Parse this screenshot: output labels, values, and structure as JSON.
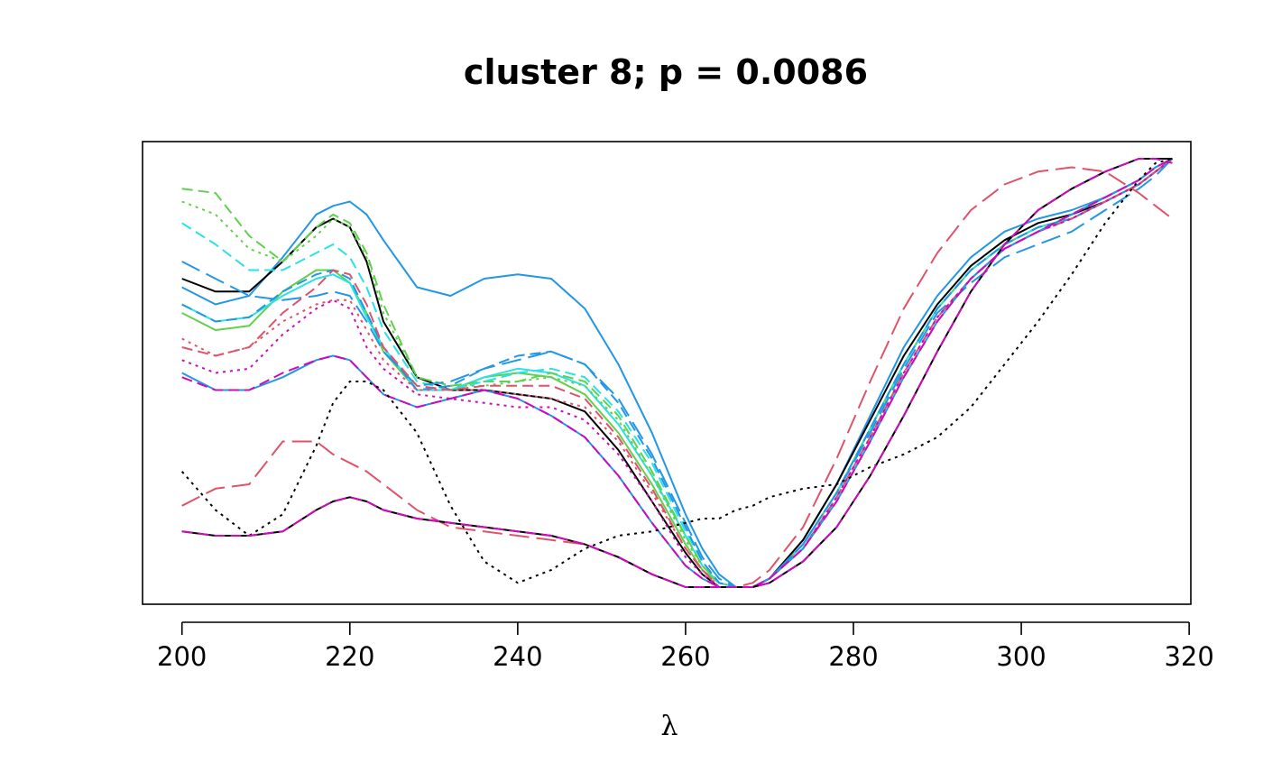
{
  "chart_data": {
    "type": "line",
    "title": "cluster 8; p = 0.0086",
    "xlabel": "λ",
    "ylabel": "",
    "xlim": [
      195.3,
      320.2
    ],
    "ylim": [
      -0.04,
      1.04
    ],
    "x_ticks": [
      200,
      220,
      240,
      260,
      280,
      300,
      320
    ],
    "x_tick_labels": [
      "200",
      "220",
      "240",
      "260",
      "280",
      "300",
      "320"
    ],
    "y_axis_shown": false,
    "grid": false,
    "legend": "none",
    "x": [
      200,
      204,
      208,
      212,
      216,
      218,
      220,
      222,
      224,
      228,
      232,
      236,
      240,
      244,
      248,
      252,
      256,
      260,
      262,
      264,
      266,
      268,
      270,
      274,
      278,
      282,
      286,
      290,
      294,
      298,
      302,
      306,
      310,
      314,
      316,
      318
    ],
    "series": [
      {
        "color": "#2297E6",
        "dash": "solid",
        "values": [
          0.7,
          0.66,
          0.68,
          0.77,
          0.87,
          0.89,
          0.9,
          0.87,
          0.81,
          0.7,
          0.68,
          0.72,
          0.73,
          0.72,
          0.65,
          0.52,
          0.36,
          0.17,
          0.09,
          0.03,
          0.0,
          0.0,
          0.02,
          0.11,
          0.24,
          0.4,
          0.56,
          0.68,
          0.77,
          0.83,
          0.86,
          0.88,
          0.91,
          0.95,
          0.98,
          1.0
        ]
      },
      {
        "color": "#000000",
        "dash": "solid",
        "values": [
          0.72,
          0.69,
          0.69,
          0.76,
          0.84,
          0.86,
          0.84,
          0.76,
          0.62,
          0.49,
          0.46,
          0.46,
          0.45,
          0.44,
          0.41,
          0.32,
          0.2,
          0.08,
          0.03,
          0.0,
          0.0,
          0.0,
          0.02,
          0.11,
          0.24,
          0.39,
          0.54,
          0.66,
          0.75,
          0.81,
          0.85,
          0.87,
          0.9,
          0.94,
          0.97,
          1.0
        ]
      },
      {
        "color": "#61D04F",
        "dash": "solid",
        "values": [
          0.64,
          0.6,
          0.61,
          0.69,
          0.74,
          0.74,
          0.71,
          0.64,
          0.55,
          0.46,
          0.46,
          0.49,
          0.5,
          0.49,
          0.45,
          0.36,
          0.24,
          0.1,
          0.04,
          0.01,
          0.0,
          0.0,
          0.02,
          0.1,
          0.22,
          0.37,
          0.52,
          0.65,
          0.74,
          0.8,
          0.84,
          0.86,
          0.9,
          0.94,
          0.97,
          1.0
        ]
      },
      {
        "color": "#28E2E5",
        "dash": "solid",
        "values": [
          0.66,
          0.62,
          0.63,
          0.68,
          0.72,
          0.73,
          0.71,
          0.63,
          0.56,
          0.46,
          0.46,
          0.49,
          0.51,
          0.5,
          0.47,
          0.38,
          0.26,
          0.12,
          0.05,
          0.01,
          0.0,
          0.0,
          0.02,
          0.1,
          0.22,
          0.37,
          0.52,
          0.65,
          0.74,
          0.8,
          0.84,
          0.86,
          0.9,
          0.94,
          0.97,
          1.0
        ]
      },
      {
        "color": "#61D04F",
        "dash": "dashed",
        "values": [
          0.93,
          0.92,
          0.82,
          0.76,
          0.84,
          0.87,
          0.85,
          0.78,
          0.66,
          0.49,
          0.47,
          0.48,
          0.48,
          0.5,
          0.48,
          0.4,
          0.27,
          0.12,
          0.05,
          0.01,
          0.0,
          0.0,
          0.02,
          0.1,
          0.22,
          0.37,
          0.52,
          0.65,
          0.74,
          0.8,
          0.84,
          0.86,
          0.9,
          0.94,
          0.97,
          1.0
        ]
      },
      {
        "color": "#61D04F",
        "dash": "dotted",
        "values": [
          0.9,
          0.87,
          0.79,
          0.76,
          0.82,
          0.86,
          0.84,
          0.77,
          0.64,
          0.49,
          0.47,
          0.47,
          0.48,
          0.49,
          0.47,
          0.39,
          0.26,
          0.11,
          0.05,
          0.01,
          0.0,
          0.0,
          0.02,
          0.1,
          0.22,
          0.37,
          0.52,
          0.65,
          0.74,
          0.8,
          0.84,
          0.86,
          0.9,
          0.94,
          0.97,
          1.0
        ]
      },
      {
        "color": "#28E2E5",
        "dash": "dashed",
        "values": [
          0.85,
          0.8,
          0.74,
          0.74,
          0.78,
          0.8,
          0.77,
          0.7,
          0.6,
          0.48,
          0.46,
          0.48,
          0.5,
          0.51,
          0.49,
          0.41,
          0.29,
          0.13,
          0.06,
          0.01,
          0.0,
          0.0,
          0.02,
          0.1,
          0.22,
          0.37,
          0.52,
          0.65,
          0.74,
          0.8,
          0.84,
          0.86,
          0.9,
          0.94,
          0.97,
          1.0
        ]
      },
      {
        "color": "#2297E6",
        "dash": "longdash",
        "values": [
          0.76,
          0.72,
          0.68,
          0.67,
          0.68,
          0.69,
          0.68,
          0.62,
          0.55,
          0.47,
          0.48,
          0.51,
          0.53,
          0.55,
          0.52,
          0.44,
          0.31,
          0.15,
          0.07,
          0.02,
          0.0,
          0.0,
          0.02,
          0.1,
          0.22,
          0.36,
          0.51,
          0.64,
          0.71,
          0.77,
          0.8,
          0.83,
          0.88,
          0.93,
          0.96,
          1.0
        ]
      },
      {
        "color": "#2297E6",
        "dash": "dashed",
        "values": [
          0.66,
          0.62,
          0.63,
          0.69,
          0.73,
          0.74,
          0.72,
          0.64,
          0.56,
          0.46,
          0.47,
          0.51,
          0.54,
          0.55,
          0.52,
          0.43,
          0.3,
          0.14,
          0.06,
          0.01,
          0.0,
          0.0,
          0.02,
          0.1,
          0.22,
          0.37,
          0.52,
          0.65,
          0.74,
          0.8,
          0.84,
          0.86,
          0.9,
          0.94,
          0.97,
          1.0
        ]
      },
      {
        "color": "#DF536B",
        "dash": "dashed",
        "values": [
          0.56,
          0.54,
          0.56,
          0.64,
          0.7,
          0.74,
          0.73,
          0.66,
          0.56,
          0.47,
          0.46,
          0.47,
          0.47,
          0.47,
          0.44,
          0.35,
          0.23,
          0.09,
          0.04,
          0.0,
          0.0,
          0.0,
          0.02,
          0.09,
          0.21,
          0.35,
          0.5,
          0.63,
          0.72,
          0.79,
          0.83,
          0.86,
          0.9,
          0.94,
          0.97,
          1.0
        ]
      },
      {
        "color": "#DF536B",
        "dash": "dotted",
        "values": [
          0.58,
          0.54,
          0.56,
          0.62,
          0.66,
          0.67,
          0.67,
          0.6,
          0.53,
          0.46,
          0.46,
          0.46,
          0.45,
          0.44,
          0.42,
          0.34,
          0.22,
          0.09,
          0.04,
          0.0,
          0.0,
          0.0,
          0.02,
          0.09,
          0.21,
          0.35,
          0.5,
          0.63,
          0.72,
          0.79,
          0.83,
          0.86,
          0.9,
          0.94,
          0.97,
          1.0
        ]
      },
      {
        "color": "#CD0BBC",
        "dash": "dotted",
        "values": [
          0.53,
          0.5,
          0.51,
          0.59,
          0.65,
          0.67,
          0.65,
          0.56,
          0.51,
          0.45,
          0.44,
          0.43,
          0.42,
          0.42,
          0.39,
          0.31,
          0.2,
          0.07,
          0.03,
          0.0,
          0.0,
          0.0,
          0.02,
          0.09,
          0.21,
          0.35,
          0.5,
          0.63,
          0.72,
          0.79,
          0.83,
          0.86,
          0.9,
          0.94,
          0.97,
          1.0
        ]
      },
      {
        "color": "#2297E6",
        "dash": "solid",
        "values": [
          0.5,
          0.46,
          0.46,
          0.49,
          0.53,
          0.54,
          0.53,
          0.49,
          0.45,
          0.42,
          0.44,
          0.46,
          0.44,
          0.4,
          0.35,
          0.26,
          0.15,
          0.05,
          0.02,
          0.0,
          0.0,
          0.0,
          0.02,
          0.09,
          0.2,
          0.34,
          0.49,
          0.62,
          0.72,
          0.79,
          0.83,
          0.87,
          0.91,
          0.95,
          0.98,
          1.0
        ]
      },
      {
        "color": "#CD0BBC",
        "dash": "dashed",
        "values": [
          0.49,
          0.46,
          0.46,
          0.5,
          0.53,
          0.54,
          0.53,
          0.49,
          0.45,
          0.42,
          0.44,
          0.46,
          0.44,
          0.4,
          0.35,
          0.26,
          0.15,
          0.05,
          0.02,
          0.0,
          0.0,
          0.0,
          0.02,
          0.09,
          0.2,
          0.34,
          0.49,
          0.62,
          0.72,
          0.79,
          0.83,
          0.87,
          0.91,
          0.95,
          0.98,
          1.0
        ]
      },
      {
        "color": "#DF536B",
        "dash": "longdash",
        "values": [
          0.19,
          0.23,
          0.24,
          0.34,
          0.34,
          0.31,
          0.29,
          0.27,
          0.24,
          0.18,
          0.14,
          0.13,
          0.12,
          0.11,
          0.1,
          0.07,
          0.03,
          0.0,
          0.0,
          0.0,
          0.0,
          0.01,
          0.04,
          0.14,
          0.3,
          0.48,
          0.65,
          0.78,
          0.88,
          0.94,
          0.97,
          0.98,
          0.97,
          0.92,
          0.89,
          0.86
        ]
      },
      {
        "color": "#000000",
        "dash": "dotted",
        "values": [
          0.27,
          0.18,
          0.12,
          0.17,
          0.33,
          0.43,
          0.48,
          0.48,
          0.46,
          0.36,
          0.19,
          0.06,
          0.01,
          0.04,
          0.09,
          0.12,
          0.13,
          0.15,
          0.16,
          0.16,
          0.18,
          0.19,
          0.21,
          0.23,
          0.24,
          0.28,
          0.31,
          0.35,
          0.42,
          0.52,
          0.62,
          0.73,
          0.85,
          0.95,
          0.99,
          1.0
        ]
      },
      {
        "color": "#000000",
        "dash": "solid",
        "values": [
          0.13,
          0.12,
          0.12,
          0.13,
          0.18,
          0.2,
          0.21,
          0.2,
          0.18,
          0.16,
          0.15,
          0.14,
          0.13,
          0.12,
          0.1,
          0.07,
          0.03,
          0.0,
          0.0,
          0.0,
          0.0,
          0.0,
          0.01,
          0.06,
          0.14,
          0.26,
          0.4,
          0.55,
          0.69,
          0.8,
          0.88,
          0.93,
          0.97,
          1.0,
          1.0,
          1.0
        ]
      },
      {
        "color": "#CD0BBC",
        "dash": "dashed",
        "values": [
          0.13,
          0.12,
          0.12,
          0.13,
          0.18,
          0.2,
          0.21,
          0.2,
          0.18,
          0.16,
          0.15,
          0.14,
          0.13,
          0.12,
          0.1,
          0.07,
          0.03,
          0.0,
          0.0,
          0.0,
          0.0,
          0.0,
          0.01,
          0.06,
          0.14,
          0.26,
          0.4,
          0.55,
          0.69,
          0.8,
          0.88,
          0.93,
          0.97,
          1.0,
          1.0,
          0.99
        ]
      }
    ]
  }
}
